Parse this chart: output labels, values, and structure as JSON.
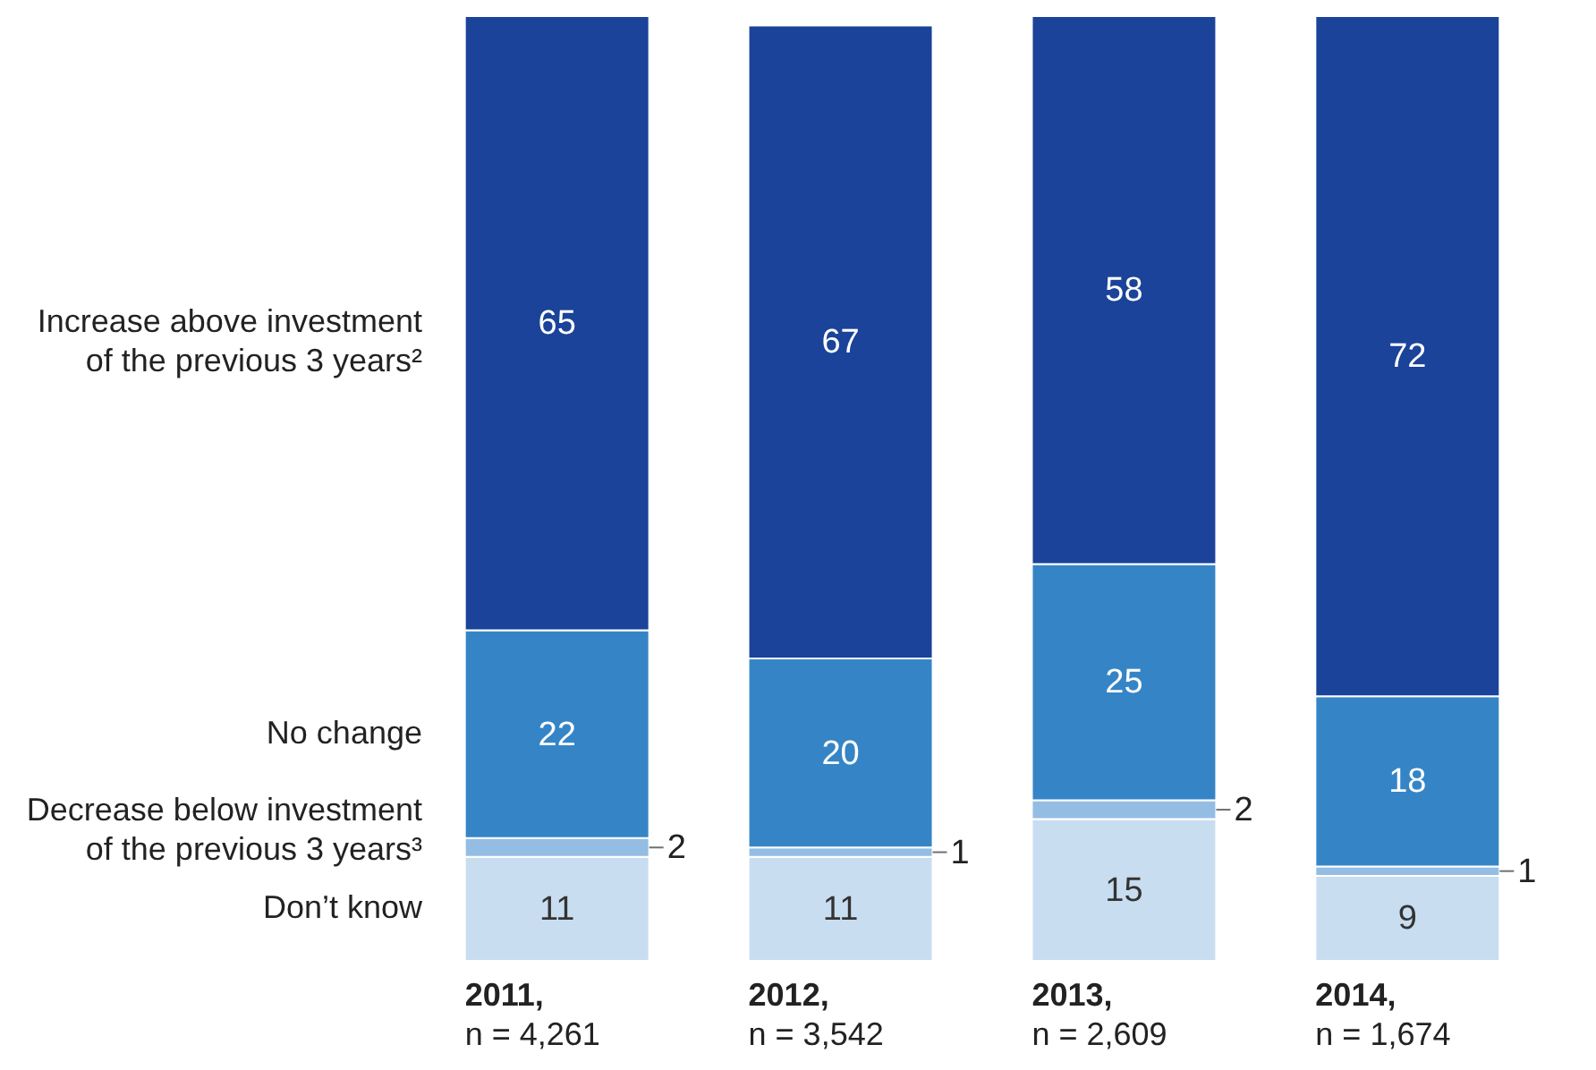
{
  "chart_data": {
    "type": "bar",
    "stacked": true,
    "data_labels": true,
    "legend": false,
    "categories": [
      "2011,\nn = 4,261",
      "2012,\nn = 3,542",
      "2013,\nn = 2,609",
      "2014,\nn = 1,674"
    ],
    "series": [
      {
        "name": "Don’t know",
        "color": "#c9ddf1",
        "values": [
          11,
          11,
          15,
          9
        ]
      },
      {
        "name": "Decrease below investment of the previous 3 years³",
        "color": "#94bde3",
        "values": [
          2,
          1,
          2,
          1
        ]
      },
      {
        "name": "No change",
        "color": "#3585c6",
        "values": [
          22,
          20,
          25,
          18
        ]
      },
      {
        "name": "Increase above investment of the previous 3 years²",
        "color": "#1a4399",
        "values": [
          65,
          67,
          58,
          72
        ]
      }
    ]
  }
}
